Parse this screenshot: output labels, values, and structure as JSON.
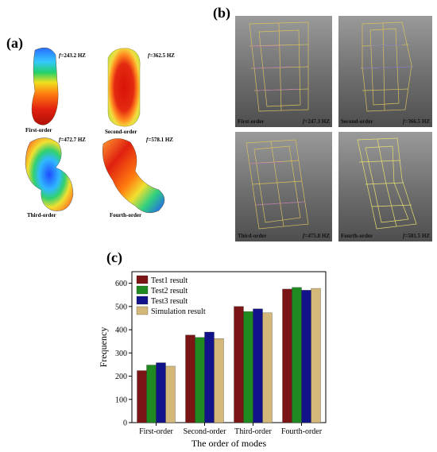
{
  "panel_a": {
    "label": "(a)",
    "modes": [
      {
        "order_label": "First-order",
        "freq_prefix": "f",
        "freq_value": "=243.2 HZ"
      },
      {
        "order_label": "Second-order",
        "freq_prefix": "f",
        "freq_value": "=362.5 HZ"
      },
      {
        "order_label": "Third-order",
        "freq_prefix": "f",
        "freq_value": "=472.7 HZ"
      },
      {
        "order_label": "Fourth-order",
        "freq_prefix": "f",
        "freq_value": "=578.1 HZ"
      }
    ]
  },
  "panel_b": {
    "label": "(b)",
    "modes": [
      {
        "order_label": "First-order",
        "freq_prefix": "f",
        "freq_value": "=247.3 HZ"
      },
      {
        "order_label": "Second-order",
        "freq_prefix": "f",
        "freq_value": "=366.5 HZ"
      },
      {
        "order_label": "Third-order",
        "freq_prefix": "f",
        "freq_value": "=475.8 HZ"
      },
      {
        "order_label": "Fourth-order",
        "freq_prefix": "f",
        "freq_value": "=581.5 HZ"
      }
    ]
  },
  "panel_c": {
    "label": "(c)"
  },
  "colors": {
    "test1": "#7b1414",
    "test2": "#1f8a1f",
    "test3": "#12128a",
    "simulation": "#d4b87a"
  },
  "chart_data": {
    "type": "bar",
    "title": "",
    "xlabel": "The order of modes",
    "ylabel": "Frequency",
    "categories": [
      "First-order",
      "Second-order",
      "Third-order",
      "Fourth-order"
    ],
    "series": [
      {
        "name": "Test1 result",
        "values": [
          224,
          377,
          500,
          575
        ],
        "color": "#7b1414"
      },
      {
        "name": "Test2 result",
        "values": [
          248,
          367,
          478,
          582
        ],
        "color": "#1f8a1f"
      },
      {
        "name": "Test3 result",
        "values": [
          258,
          390,
          490,
          570
        ],
        "color": "#12128a"
      },
      {
        "name": "Simulation result",
        "values": [
          243,
          362,
          473,
          578
        ],
        "color": "#d4b87a"
      }
    ],
    "ylim": [
      0,
      650
    ],
    "yticks": [
      0,
      100,
      200,
      300,
      400,
      500,
      600
    ],
    "grid": false,
    "legend_position": "top-left"
  }
}
